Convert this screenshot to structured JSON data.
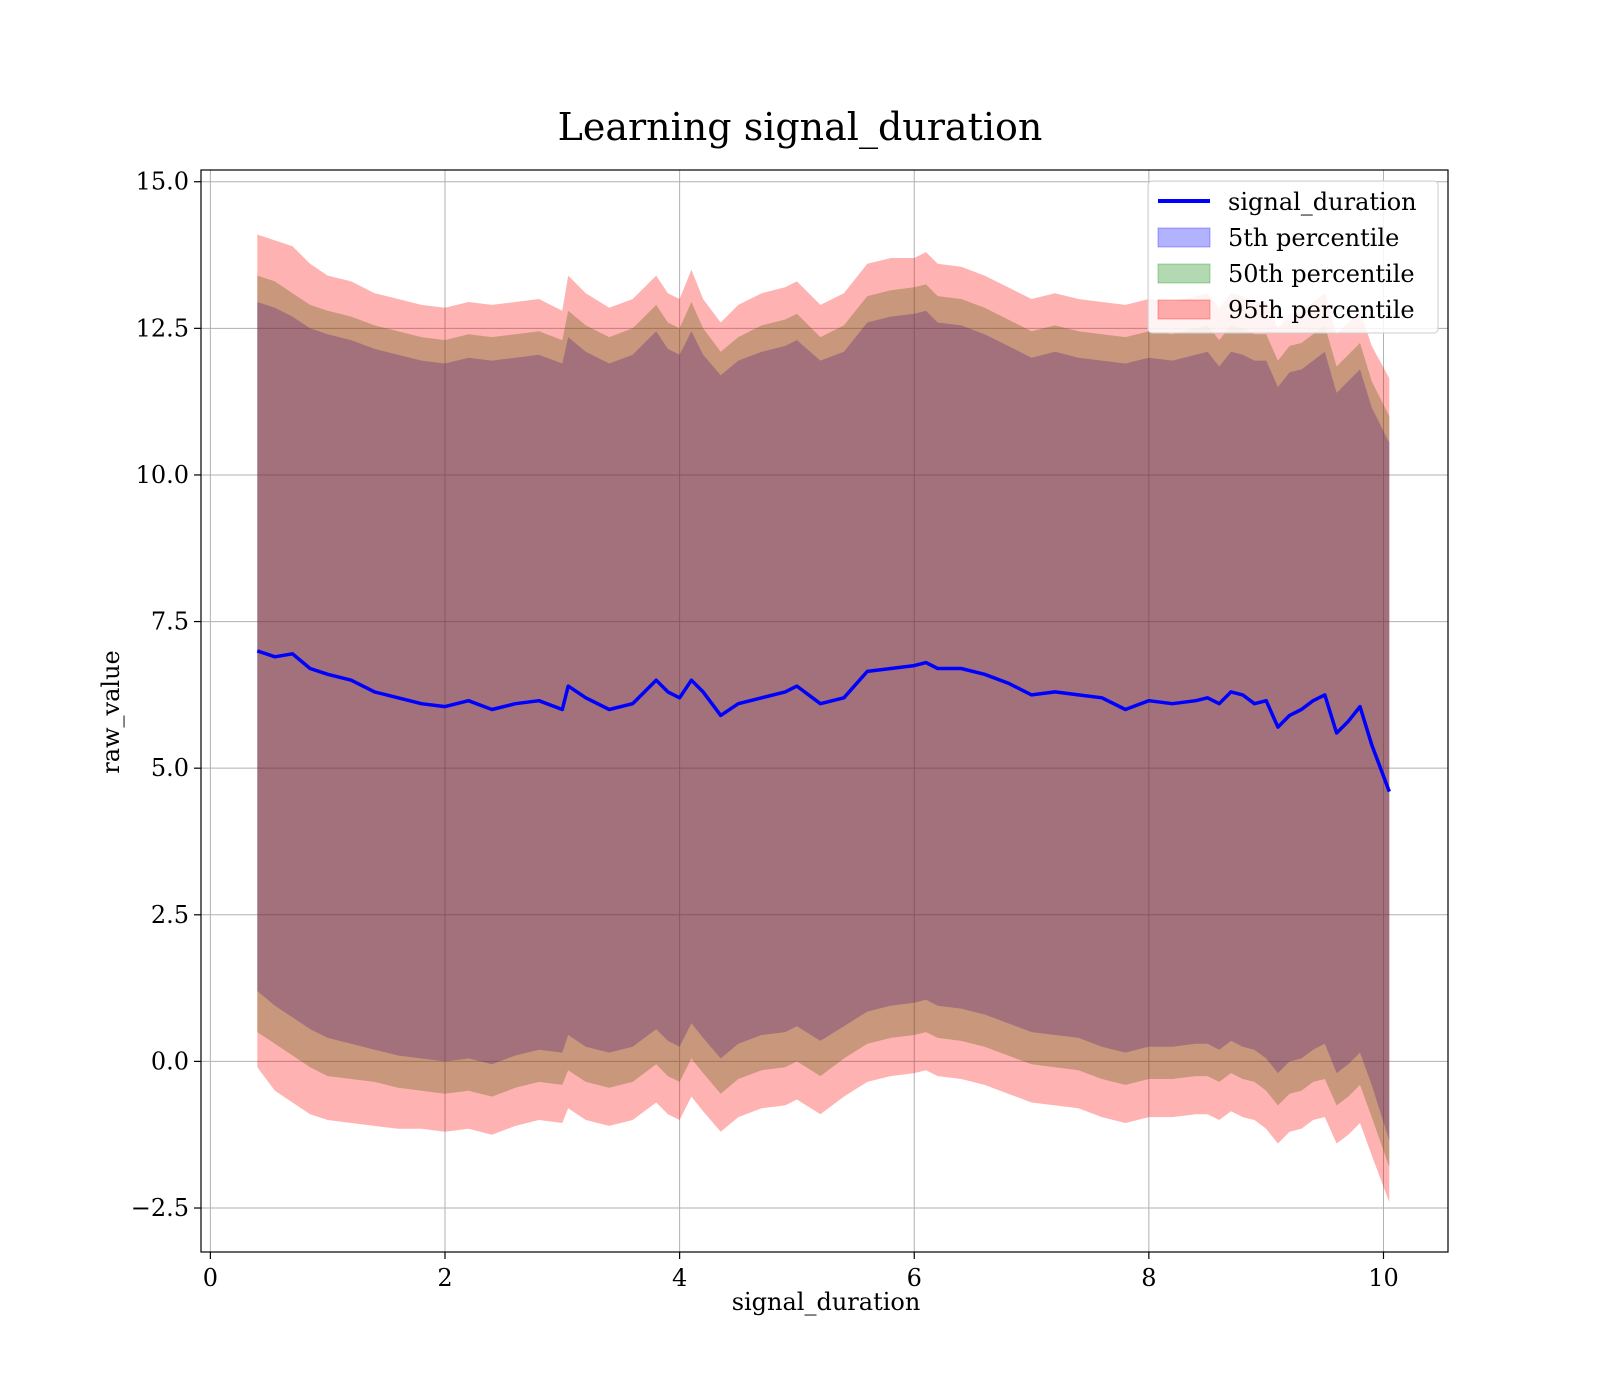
{
  "chart_data": {
    "type": "area",
    "title": "Learning signal_duration",
    "xlabel": "signal_duration",
    "ylabel": "raw_value",
    "xlim": [
      -0.08,
      10.55
    ],
    "ylim": [
      -3.25,
      15.2
    ],
    "xticks": [
      0,
      2,
      4,
      6,
      8,
      10
    ],
    "xtick_labels": [
      "0",
      "2",
      "4",
      "6",
      "8",
      "10"
    ],
    "yticks": [
      -2.5,
      0.0,
      2.5,
      5.0,
      7.5,
      10.0,
      12.5,
      15.0
    ],
    "ytick_labels": [
      "−2.5",
      "0.0",
      "2.5",
      "5.0",
      "7.5",
      "10.0",
      "12.5",
      "15.0"
    ],
    "grid": true,
    "legend_position": "top-right",
    "legend": [
      "signal_duration",
      "5th percentile",
      "50th percentile",
      "95th percentile"
    ],
    "colors": {
      "line": "#0000ff",
      "p5": "#0000ff",
      "p50": "#008000",
      "p95": "#ff0000",
      "band_alpha": 0.3,
      "grid": "#b0b0b0"
    },
    "x": [
      0.4,
      0.55,
      0.7,
      0.85,
      1.0,
      1.2,
      1.4,
      1.6,
      1.8,
      2.0,
      2.2,
      2.4,
      2.6,
      2.8,
      3.0,
      3.05,
      3.2,
      3.4,
      3.6,
      3.8,
      3.9,
      4.0,
      4.1,
      4.2,
      4.35,
      4.5,
      4.7,
      4.9,
      5.0,
      5.2,
      5.4,
      5.6,
      5.8,
      6.0,
      6.1,
      6.2,
      6.4,
      6.6,
      6.8,
      7.0,
      7.2,
      7.4,
      7.6,
      7.8,
      8.0,
      8.2,
      8.4,
      8.5,
      8.6,
      8.7,
      8.8,
      8.9,
      9.0,
      9.1,
      9.2,
      9.3,
      9.4,
      9.5,
      9.6,
      9.7,
      9.8,
      9.9,
      10.05
    ],
    "series": [
      {
        "name": "signal_duration",
        "values": [
          7.0,
          6.9,
          6.95,
          6.7,
          6.6,
          6.5,
          6.3,
          6.2,
          6.1,
          6.05,
          6.15,
          6.0,
          6.1,
          6.15,
          6.0,
          6.4,
          6.2,
          6.0,
          6.1,
          6.5,
          6.3,
          6.2,
          6.5,
          6.3,
          5.9,
          6.1,
          6.2,
          6.3,
          6.4,
          6.1,
          6.2,
          6.65,
          6.7,
          6.75,
          6.8,
          6.7,
          6.7,
          6.6,
          6.45,
          6.25,
          6.3,
          6.25,
          6.2,
          6.0,
          6.15,
          6.1,
          6.15,
          6.2,
          6.1,
          6.3,
          6.25,
          6.1,
          6.15,
          5.7,
          5.9,
          6.0,
          6.15,
          6.25,
          5.6,
          5.8,
          6.05,
          5.4,
          4.6
        ]
      },
      {
        "name": "95th percentile",
        "upper": [
          14.1,
          14.0,
          13.9,
          13.6,
          13.4,
          13.3,
          13.1,
          13.0,
          12.9,
          12.85,
          12.95,
          12.9,
          12.95,
          13.0,
          12.8,
          13.4,
          13.1,
          12.85,
          13.0,
          13.4,
          13.1,
          13.0,
          13.5,
          13.0,
          12.6,
          12.9,
          13.1,
          13.2,
          13.3,
          12.9,
          13.1,
          13.6,
          13.7,
          13.7,
          13.8,
          13.6,
          13.55,
          13.4,
          13.2,
          13.0,
          13.1,
          13.0,
          12.95,
          12.9,
          13.0,
          12.95,
          13.05,
          13.1,
          12.85,
          13.1,
          13.05,
          12.95,
          12.95,
          12.5,
          12.75,
          12.8,
          12.95,
          13.1,
          12.4,
          12.6,
          12.8,
          12.2,
          11.65
        ],
        "lower": [
          -0.1,
          -0.5,
          -0.7,
          -0.9,
          -1.0,
          -1.05,
          -1.1,
          -1.15,
          -1.15,
          -1.2,
          -1.15,
          -1.25,
          -1.1,
          -1.0,
          -1.05,
          -0.8,
          -1.0,
          -1.1,
          -1.0,
          -0.7,
          -0.9,
          -1.0,
          -0.6,
          -0.85,
          -1.2,
          -0.95,
          -0.8,
          -0.75,
          -0.65,
          -0.9,
          -0.6,
          -0.35,
          -0.25,
          -0.2,
          -0.15,
          -0.25,
          -0.3,
          -0.4,
          -0.55,
          -0.7,
          -0.75,
          -0.8,
          -0.95,
          -1.05,
          -0.95,
          -0.95,
          -0.9,
          -0.9,
          -1.0,
          -0.85,
          -0.95,
          -1.0,
          -1.15,
          -1.4,
          -1.2,
          -1.15,
          -1.0,
          -0.95,
          -1.4,
          -1.25,
          -1.05,
          -1.6,
          -2.4
        ]
      },
      {
        "name": "50th percentile",
        "upper": [
          13.4,
          13.3,
          13.1,
          12.9,
          12.8,
          12.7,
          12.55,
          12.45,
          12.35,
          12.3,
          12.4,
          12.35,
          12.4,
          12.45,
          12.3,
          12.8,
          12.55,
          12.35,
          12.5,
          12.9,
          12.6,
          12.5,
          12.95,
          12.5,
          12.1,
          12.35,
          12.55,
          12.65,
          12.75,
          12.35,
          12.55,
          13.05,
          13.15,
          13.2,
          13.25,
          13.05,
          13.0,
          12.85,
          12.65,
          12.45,
          12.55,
          12.45,
          12.4,
          12.35,
          12.45,
          12.4,
          12.5,
          12.55,
          12.3,
          12.55,
          12.5,
          12.4,
          12.4,
          11.95,
          12.2,
          12.25,
          12.4,
          12.55,
          11.85,
          12.05,
          12.25,
          11.6,
          11.0
        ],
        "lower": [
          0.5,
          0.3,
          0.1,
          -0.1,
          -0.25,
          -0.3,
          -0.35,
          -0.45,
          -0.5,
          -0.55,
          -0.5,
          -0.6,
          -0.45,
          -0.35,
          -0.4,
          -0.15,
          -0.35,
          -0.45,
          -0.35,
          -0.05,
          -0.25,
          -0.35,
          0.05,
          -0.2,
          -0.55,
          -0.3,
          -0.15,
          -0.1,
          0.0,
          -0.25,
          0.05,
          0.3,
          0.4,
          0.45,
          0.5,
          0.4,
          0.35,
          0.25,
          0.1,
          -0.05,
          -0.1,
          -0.15,
          -0.3,
          -0.4,
          -0.3,
          -0.3,
          -0.25,
          -0.25,
          -0.35,
          -0.2,
          -0.3,
          -0.35,
          -0.5,
          -0.75,
          -0.55,
          -0.5,
          -0.35,
          -0.3,
          -0.75,
          -0.6,
          -0.4,
          -0.95,
          -1.8
        ]
      },
      {
        "name": "5th percentile",
        "upper": [
          12.95,
          12.85,
          12.7,
          12.5,
          12.4,
          12.3,
          12.15,
          12.05,
          11.95,
          11.9,
          12.0,
          11.95,
          12.0,
          12.05,
          11.9,
          12.35,
          12.1,
          11.9,
          12.05,
          12.45,
          12.15,
          12.05,
          12.45,
          12.05,
          11.7,
          11.95,
          12.1,
          12.2,
          12.3,
          11.95,
          12.1,
          12.6,
          12.7,
          12.75,
          12.8,
          12.6,
          12.55,
          12.4,
          12.2,
          12.0,
          12.1,
          12.0,
          11.95,
          11.9,
          12.0,
          11.95,
          12.05,
          12.1,
          11.85,
          12.1,
          12.05,
          11.95,
          11.95,
          11.5,
          11.75,
          11.8,
          11.95,
          12.1,
          11.4,
          11.6,
          11.8,
          11.15,
          10.55
        ],
        "lower": [
          1.2,
          0.95,
          0.75,
          0.55,
          0.4,
          0.3,
          0.2,
          0.1,
          0.05,
          0.0,
          0.05,
          -0.05,
          0.1,
          0.2,
          0.15,
          0.45,
          0.25,
          0.15,
          0.25,
          0.55,
          0.35,
          0.25,
          0.65,
          0.4,
          0.05,
          0.3,
          0.45,
          0.5,
          0.6,
          0.35,
          0.6,
          0.85,
          0.95,
          1.0,
          1.05,
          0.95,
          0.9,
          0.8,
          0.65,
          0.5,
          0.45,
          0.4,
          0.25,
          0.15,
          0.25,
          0.25,
          0.3,
          0.3,
          0.2,
          0.35,
          0.25,
          0.2,
          0.05,
          -0.2,
          0.0,
          0.05,
          0.2,
          0.3,
          -0.2,
          -0.05,
          0.15,
          -0.4,
          -1.35
        ]
      }
    ]
  }
}
